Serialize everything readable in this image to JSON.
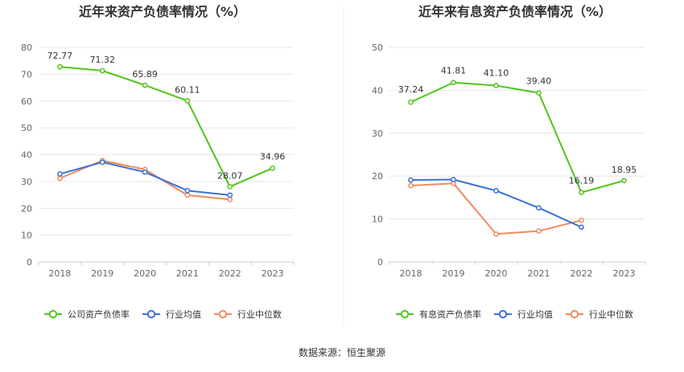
{
  "source_label": "数据来源：恒生聚源",
  "colors": {
    "company": "#52c41a",
    "industry_avg": "#3a6fd8",
    "industry_median": "#f08a5d",
    "grid": "#e6e6e6",
    "axis": "#cccccc",
    "divider": "#eeeeee"
  },
  "chart_data": [
    {
      "type": "line",
      "title": "近年来资产负债率情况（%）",
      "categories": [
        "2018",
        "2019",
        "2020",
        "2021",
        "2022",
        "2023"
      ],
      "ylim": [
        0,
        80
      ],
      "yticks": [
        0,
        10,
        20,
        30,
        40,
        50,
        60,
        70,
        80
      ],
      "grid": true,
      "legend_position": "bottom",
      "series": [
        {
          "name": "公司资产负债率",
          "color_key": "company",
          "values": [
            72.77,
            71.32,
            65.89,
            60.11,
            28.07,
            34.96
          ],
          "labels": [
            "72.77",
            "71.32",
            "65.89",
            "60.11",
            "28.07",
            "34.96"
          ]
        },
        {
          "name": "行业均值",
          "color_key": "industry_avg",
          "values": [
            32.8,
            37.2,
            33.5,
            26.6,
            24.9,
            null
          ]
        },
        {
          "name": "行业中位数",
          "color_key": "industry_median",
          "values": [
            31.2,
            37.8,
            34.5,
            24.9,
            23.3,
            null
          ]
        }
      ]
    },
    {
      "type": "line",
      "title": "近年来有息资产负债率情况（%）",
      "categories": [
        "2018",
        "2019",
        "2020",
        "2021",
        "2022",
        "2023"
      ],
      "ylim": [
        0,
        50
      ],
      "yticks": [
        0,
        10,
        20,
        30,
        40,
        50
      ],
      "grid": true,
      "legend_position": "bottom",
      "series": [
        {
          "name": "有息资产负债率",
          "color_key": "company",
          "values": [
            37.24,
            41.81,
            41.1,
            39.4,
            16.19,
            18.95
          ],
          "labels": [
            "37.24",
            "41.81",
            "41.10",
            "39.40",
            "16.19",
            "18.95"
          ]
        },
        {
          "name": "行业均值",
          "color_key": "industry_avg",
          "values": [
            19.1,
            19.2,
            16.6,
            12.6,
            8.1,
            null
          ]
        },
        {
          "name": "行业中位数",
          "color_key": "industry_median",
          "values": [
            17.8,
            18.3,
            6.5,
            7.2,
            9.7,
            null
          ]
        }
      ]
    }
  ]
}
